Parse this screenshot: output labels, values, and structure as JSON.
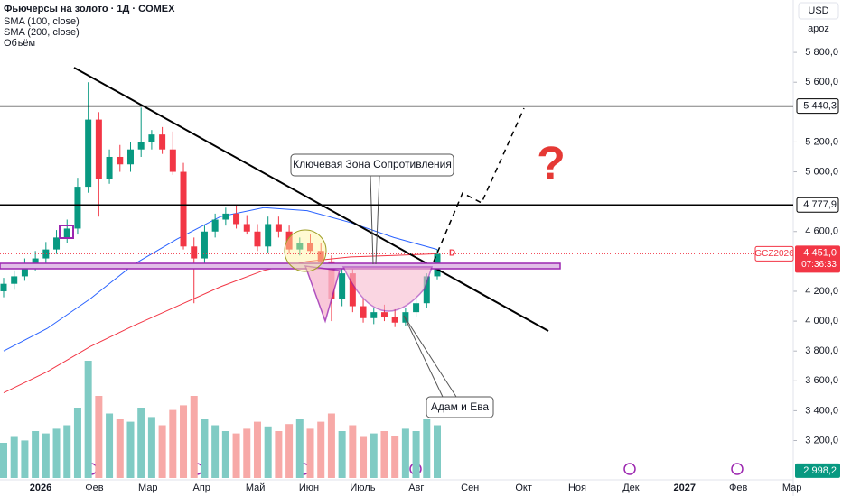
{
  "chart_data": {
    "type": "candlestick",
    "title": "Фьючерсы на золото · 1Д · COMEX",
    "indicators": [
      "SMA (100, close)",
      "SMA (200, close)",
      "Объём"
    ],
    "currency": "USD",
    "mode": "apoz",
    "x_labels": [
      "2026",
      "Фев",
      "Мар",
      "Апр",
      "Май",
      "Июн",
      "Июль",
      "Авг",
      "Сен",
      "Окт",
      "Ноя",
      "Дек",
      "2027",
      "Фев",
      "Мар"
    ],
    "ylim": [
      2889,
      6151
    ],
    "yticks": [
      {
        "value": 5800,
        "label": "5 800,0"
      },
      {
        "value": 5600,
        "label": "5 600,0"
      },
      {
        "value": 5200,
        "label": "5 200,0"
      },
      {
        "value": 5000,
        "label": "5 000,0"
      },
      {
        "value": 4600,
        "label": "4 600,0"
      },
      {
        "value": 4200,
        "label": "4 200,0"
      },
      {
        "value": 4000,
        "label": "4 000,0"
      },
      {
        "value": 3800,
        "label": "3 800,0"
      },
      {
        "value": 3600,
        "label": "3 600,0"
      },
      {
        "value": 3400,
        "label": "3 400,0"
      },
      {
        "value": 3200,
        "label": "3 200,0"
      }
    ],
    "open": [
      4200,
      4250,
      4300,
      4380,
      4420,
      4480,
      4560,
      4620,
      4900,
      5350,
      4950,
      5100,
      5050,
      5150,
      5200,
      5250,
      5150,
      5000,
      4500,
      4420,
      4600,
      4680,
      4720,
      4650,
      4600,
      4500,
      4650,
      4600,
      4480,
      4520,
      4470,
      4400,
      4150,
      4320,
      4100,
      4020,
      4060,
      4030,
      3990,
      4060,
      4120,
      4300
    ],
    "high": [
      4290,
      4340,
      4420,
      4470,
      4530,
      4610,
      4680,
      4960,
      5600,
      5400,
      5150,
      5180,
      5200,
      5430,
      5280,
      5300,
      5270,
      5060,
      4560,
      4640,
      4720,
      4760,
      4780,
      4710,
      4650,
      4700,
      4700,
      4640,
      4560,
      4580,
      4520,
      4440,
      4350,
      4380,
      4150,
      4090,
      4110,
      4080,
      4090,
      4150,
      4320,
      4480
    ],
    "low": [
      4160,
      4210,
      4270,
      4340,
      4390,
      4450,
      4520,
      4580,
      4860,
      4700,
      4920,
      5000,
      5000,
      5100,
      5150,
      5120,
      4980,
      4480,
      4120,
      4380,
      4560,
      4640,
      4620,
      4580,
      4470,
      4460,
      4560,
      4450,
      4440,
      4450,
      4380,
      4000,
      4100,
      4060,
      3990,
      3980,
      4000,
      3960,
      3970,
      4030,
      4090,
      4280
    ],
    "close": [
      4250,
      4300,
      4380,
      4420,
      4480,
      4560,
      4620,
      4900,
      5350,
      4950,
      5100,
      5050,
      5150,
      5200,
      5250,
      5150,
      5000,
      4500,
      4420,
      4600,
      4680,
      4720,
      4650,
      4600,
      4500,
      4650,
      4600,
      4480,
      4520,
      4470,
      4400,
      4150,
      4320,
      4100,
      4020,
      4060,
      4030,
      3990,
      4060,
      4120,
      4300,
      4451
    ],
    "volume": [
      30,
      35,
      32,
      40,
      38,
      42,
      45,
      60,
      100,
      70,
      55,
      50,
      48,
      60,
      52,
      45,
      58,
      62,
      70,
      50,
      45,
      40,
      38,
      42,
      48,
      44,
      40,
      46,
      50,
      42,
      48,
      55,
      40,
      45,
      35,
      38,
      40,
      36,
      42,
      40,
      50,
      45
    ],
    "series": [
      {
        "name": "SMA (100, close)",
        "color": "#2962ff",
        "values": [
          3800,
          3950,
          4150,
          4380,
          4550,
          4700,
          4760,
          4740,
          4660,
          4560,
          4480
        ]
      },
      {
        "name": "SMA (200, close)",
        "color": "#f23645",
        "values": [
          3520,
          3660,
          3830,
          3970,
          4100,
          4230,
          4340,
          4400,
          4430,
          4440,
          4451
        ]
      }
    ],
    "levels": [
      {
        "value": 5440.3,
        "label": "5 440,3"
      },
      {
        "value": 4777.9,
        "label": "4 777,9"
      }
    ],
    "last_price": {
      "value": 4451,
      "label": "4 451,0",
      "symbol": "GCZ2026",
      "countdown": "07:36:33"
    },
    "volume_last": {
      "value": 2998.2,
      "label": "2 998,2"
    },
    "annotations": {
      "zone": "Ключевая Зона Сопротивления",
      "pattern": "Адам и Ева",
      "question": "?",
      "marker": "D"
    }
  }
}
